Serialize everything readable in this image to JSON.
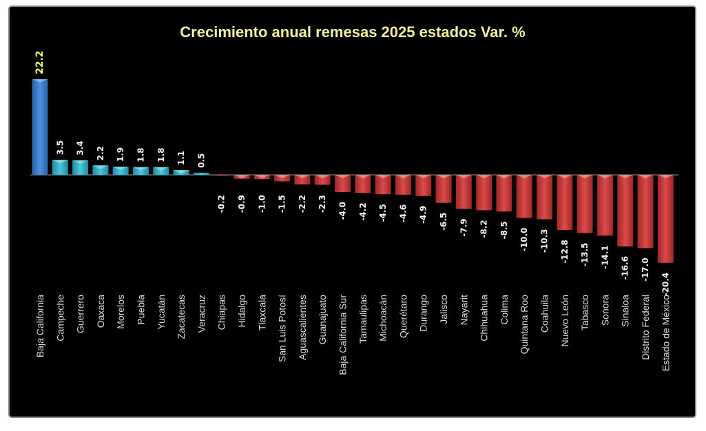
{
  "chart_data": {
    "type": "bar",
    "title": "Crecimiento anual remesas 2025 estados Var. %",
    "categories": [
      "Baja California",
      "Campeche",
      "Guerrero",
      "Oaxaca",
      "Morelos",
      "Puebla",
      "Yucatán",
      "Zacatecas",
      "Veracruz",
      "Chiapas",
      "Hidalgo",
      "Tlaxcala",
      "San Luis Potosí",
      "Aguascalientes",
      "Guanajuato",
      "Baja California Sur",
      "Tamaulipas",
      "Michoacán",
      "Querétaro",
      "Durango",
      "Jalisco",
      "Nayarit",
      "Chihuahua",
      "Colima",
      "Quintana Roo",
      "Coahuila",
      "Nuevo León",
      "Tabasco",
      "Sonora",
      "Sinaloa",
      "Distrito Federal",
      "Estado de México"
    ],
    "values": [
      22.2,
      3.5,
      3.4,
      2.2,
      1.9,
      1.8,
      1.8,
      1.1,
      0.5,
      -0.2,
      -0.9,
      -1.0,
      -1.5,
      -2.2,
      -2.3,
      -4.0,
      -4.2,
      -4.5,
      -4.6,
      -4.9,
      -6.5,
      -7.9,
      -8.2,
      -8.5,
      -10.0,
      -10.3,
      -12.8,
      -13.5,
      -14.1,
      -16.6,
      -17.0,
      -20.4
    ],
    "value_labels": [
      "22.2",
      "3.5",
      "3.4",
      "2.2",
      "1.9",
      "1.8",
      "1.8",
      "1.1",
      "0.5",
      "-0.2",
      "-0.9",
      "-1.0",
      "-1.5",
      "-2.2",
      "-2.3",
      "-4.0",
      "-4.2",
      "-4.5",
      "-4.6",
      "-4.9",
      "-6.5",
      "-7.9",
      "-8.2",
      "-8.5",
      "-10.0",
      "-10.3",
      "-12.8",
      "-13.5",
      "-14.1",
      "-16.6",
      "-17.0",
      "-20.4"
    ],
    "xlabel": "",
    "ylabel": "",
    "ylim": [
      -22.2,
      22.2
    ],
    "grid": false,
    "legend": "none",
    "colors": {
      "highlight": "#3d7fd1",
      "positive": "#38b6cf",
      "negative": "#c93b3b",
      "background": "#000000",
      "title": "#f2f29a",
      "first_label": "#ffff55"
    }
  }
}
